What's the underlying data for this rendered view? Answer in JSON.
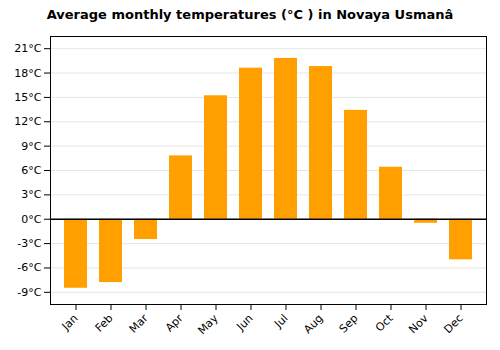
{
  "chart_data": {
    "type": "bar",
    "title": "Average monthly temperatures (°C ) in Novaya Usmanâ",
    "categories": [
      "Jan",
      "Feb",
      "Mar",
      "Apr",
      "May",
      "Jun",
      "Jul",
      "Aug",
      "Sep",
      "Oct",
      "Nov",
      "Dec"
    ],
    "values": [
      -8.5,
      -7.8,
      -2.5,
      7.8,
      15.2,
      18.6,
      19.8,
      18.8,
      13.4,
      6.4,
      -0.5,
      -5.0
    ],
    "color": "#FFA000",
    "ylim": [
      -10.5,
      22.5
    ],
    "yticks": [
      {
        "value": -9,
        "label": "-9°C"
      },
      {
        "value": -6,
        "label": "-6°C"
      },
      {
        "value": -3,
        "label": "-3°C"
      },
      {
        "value": 0,
        "label": "0°C"
      },
      {
        "value": 3,
        "label": "3°C"
      },
      {
        "value": 6,
        "label": "6°C"
      },
      {
        "value": 9,
        "label": "9°C"
      },
      {
        "value": 12,
        "label": "12°C"
      },
      {
        "value": 15,
        "label": "15°C"
      },
      {
        "value": 18,
        "label": "18°C"
      },
      {
        "value": 21,
        "label": "21°C"
      }
    ],
    "grid": true
  }
}
